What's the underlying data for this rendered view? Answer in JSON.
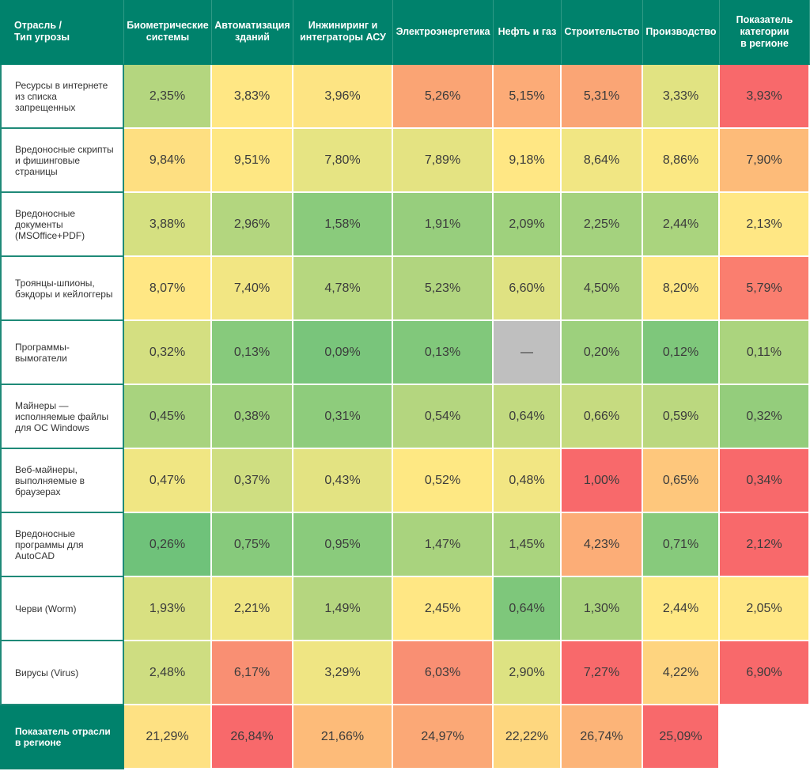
{
  "chart_data": {
    "type": "heatmap",
    "title": "",
    "corner_label": "Отрасль /\nТип угрозы",
    "columns": [
      "Биометрические\nсистемы",
      "Автоматизация\nзданий",
      "Инжиниринг и\nинтеграторы АСУ",
      "Электроэнергетика",
      "Нефть и газ",
      "Строительство",
      "Производство",
      "Показатель\nкатегории\nв регионе"
    ],
    "rows": [
      {
        "label": "Ресурсы в интернете из списка запрещенных",
        "values": [
          "2,35%",
          "3,83%",
          "3,96%",
          "5,26%",
          "5,15%",
          "5,31%",
          "3,33%",
          "3,93%"
        ],
        "colors": [
          "#b4d67f",
          "#ffe784",
          "#fde483",
          "#faa474",
          "#fcab77",
          "#faa575",
          "#e1e382",
          "#f8696b"
        ]
      },
      {
        "label": "Вредоносные скрипты и фишинговые страницы",
        "values": [
          "9,84%",
          "9,51%",
          "7,80%",
          "7,89%",
          "9,18%",
          "8,64%",
          "8,86%",
          "7,90%"
        ],
        "colors": [
          "#fedf81",
          "#fee783",
          "#e6e483",
          "#e4e382",
          "#ffe784",
          "#f1e683",
          "#fbe883",
          "#fdbb79"
        ]
      },
      {
        "label": "Вредоносные документы (MSOffice+PDF)",
        "values": [
          "3,88%",
          "2,96%",
          "1,58%",
          "1,91%",
          "2,09%",
          "2,25%",
          "2,44%",
          "2,13%"
        ],
        "colors": [
          "#d5e081",
          "#b3d67f",
          "#8acb7c",
          "#97ce7d",
          "#9fd17d",
          "#a4d27e",
          "#aad47e",
          "#ffe784"
        ]
      },
      {
        "label": "Троянцы-шпионы, бэкдоры и кейлоггеры",
        "values": [
          "8,07%",
          "7,40%",
          "4,78%",
          "5,23%",
          "6,60%",
          "4,50%",
          "8,20%",
          "5,79%"
        ],
        "colors": [
          "#ffe784",
          "#f2e683",
          "#b6d77f",
          "#b1d57f",
          "#dfe282",
          "#b0d57f",
          "#ffe784",
          "#fa7e6f"
        ]
      },
      {
        "label": "Программы-вымогатели",
        "values": [
          "0,32%",
          "0,13%",
          "0,09%",
          "0,13%",
          "—",
          "0,20%",
          "0,12%",
          "0,11%"
        ],
        "colors": [
          "#d4df81",
          "#87ca7c",
          "#79c57b",
          "#81c87b",
          "#bfbfbf",
          "#9dd07d",
          "#7ec77b",
          "#abd47e"
        ]
      },
      {
        "label": "Майнеры — исполняемые файлы для ОС Windows",
        "values": [
          "0,45%",
          "0,38%",
          "0,31%",
          "0,54%",
          "0,64%",
          "0,66%",
          "0,59%",
          "0,32%"
        ],
        "colors": [
          "#a8d37e",
          "#9fd17d",
          "#8ecc7c",
          "#b4d67f",
          "#c2da80",
          "#c6db80",
          "#bbd87f",
          "#94cd7c"
        ]
      },
      {
        "label": "Веб-майнеры, выполняемые в браузерах",
        "values": [
          "0,47%",
          "0,37%",
          "0,43%",
          "0,52%",
          "0,48%",
          "1,00%",
          "0,65%",
          "0,34%"
        ],
        "colors": [
          "#f0e683",
          "#cfde81",
          "#e3e382",
          "#fee883",
          "#f2e683",
          "#f8696b",
          "#fec77c",
          "#f8696b"
        ]
      },
      {
        "label": "Вредоносные программы для AutoCAD",
        "values": [
          "0,26%",
          "0,75%",
          "0,95%",
          "1,47%",
          "1,45%",
          "4,23%",
          "0,71%",
          "2,12%"
        ],
        "colors": [
          "#6fc27a",
          "#87ca7c",
          "#8acb7c",
          "#a9d37e",
          "#aad47e",
          "#fcad77",
          "#87ca7c",
          "#f8696b"
        ]
      },
      {
        "label": "Черви (Worm)",
        "values": [
          "1,93%",
          "2,21%",
          "1,49%",
          "2,45%",
          "0,64%",
          "1,30%",
          "2,44%",
          "2,05%"
        ],
        "colors": [
          "#d8e081",
          "#f0e683",
          "#b5d67f",
          "#ffe784",
          "#7ec77b",
          "#acd47e",
          "#ffe884",
          "#ffe784"
        ]
      },
      {
        "label": "Вирусы (Virus)",
        "values": [
          "2,48%",
          "6,17%",
          "3,29%",
          "6,03%",
          "2,90%",
          "7,27%",
          "4,22%",
          "6,90%"
        ],
        "colors": [
          "#cedd81",
          "#f98f73",
          "#efe583",
          "#f98f73",
          "#dde282",
          "#f8696b",
          "#fed47f",
          "#f8696b"
        ]
      }
    ],
    "total_row": {
      "label": "Показатель отрасли\nв регионе",
      "values": [
        "21,29%",
        "26,84%",
        "21,66%",
        "24,97%",
        "22,22%",
        "26,74%",
        "25,09%",
        ""
      ],
      "colors": [
        "#fee183",
        "#f8696b",
        "#fdbb79",
        "#fba876",
        "#fed77f",
        "#fcb478",
        "#f8696b",
        "#ffffff"
      ]
    },
    "color_scale": {
      "low": "#63be7b",
      "mid": "#ffeb84",
      "high": "#f8696b",
      "missing": "#bfbfbf"
    }
  },
  "header_color": "#00826c"
}
